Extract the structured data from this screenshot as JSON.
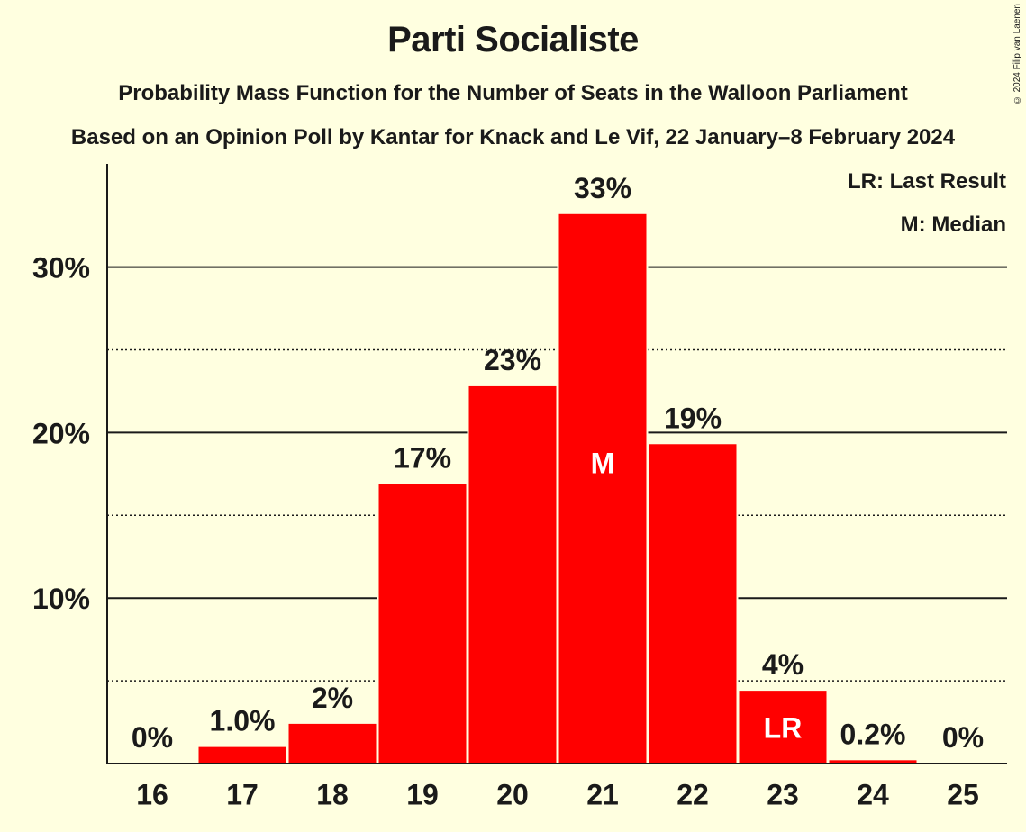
{
  "header": {
    "title": "Parti Socialiste",
    "subtitle": "Probability Mass Function for the Number of Seats in the Walloon Parliament",
    "source": "Based on an Opinion Poll by Kantar for Knack and Le Vif, 22 January–8 February 2024",
    "copyright": "© 2024 Filip van Laenen"
  },
  "legend": {
    "last_result": "LR: Last Result",
    "median": "M: Median"
  },
  "colors": {
    "bar": "#FF0000",
    "background": "#FFFFE0",
    "text": "#1a1a1a",
    "marker_text": "#FFFFFF"
  },
  "chart_data": {
    "type": "bar",
    "title": "Parti Socialiste",
    "xlabel": "",
    "ylabel": "",
    "categories": [
      "16",
      "17",
      "18",
      "19",
      "20",
      "21",
      "22",
      "23",
      "24",
      "25"
    ],
    "values": [
      0,
      1.0,
      2.4,
      16.9,
      22.8,
      33.2,
      19.3,
      4.4,
      0.2,
      0
    ],
    "data_labels": [
      "0%",
      "1.0%",
      "2%",
      "17%",
      "23%",
      "33%",
      "19%",
      "4%",
      "0.2%",
      "0%"
    ],
    "ylim": [
      0,
      36
    ],
    "y_ticks": [
      10,
      20,
      30
    ],
    "y_tick_labels": [
      "10%",
      "20%",
      "30%"
    ],
    "minor_gridlines": [
      5,
      15,
      25
    ],
    "grid": true,
    "legend_position": "top-right",
    "markers": [
      {
        "category": "21",
        "label": "M"
      },
      {
        "category": "23",
        "label": "LR"
      }
    ]
  }
}
